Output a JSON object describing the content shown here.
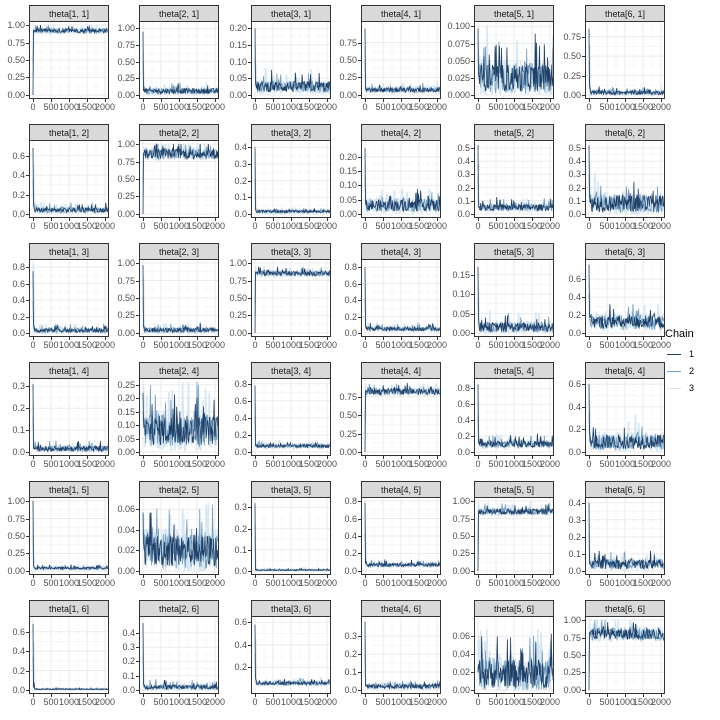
{
  "chart_data": {
    "type": "line",
    "title": "",
    "description": "MCMC trace plots faceted 6x6 by parameter theta[i, j], three chains",
    "xlabel": "",
    "ylabel": "",
    "x_range": [
      0,
      2000
    ],
    "x_ticks": [
      "0",
      "500",
      "1000",
      "1500",
      "2000"
    ],
    "grid": true,
    "legend": {
      "title": "Chain",
      "position": "right",
      "entries": [
        {
          "label": "1",
          "color": "#1f3f66"
        },
        {
          "label": "2",
          "color": "#6f9cc0"
        },
        {
          "label": "3",
          "color": "#d6e6f2"
        }
      ]
    },
    "series_names": [
      "1",
      "2",
      "3"
    ],
    "panels": [
      {
        "label": "theta[1, 1]",
        "row": 0,
        "col": 0,
        "ylim": [
          0,
          1.0
        ],
        "yticks": [
          "0.00",
          "0.25",
          "0.50",
          "0.75",
          "1.00"
        ],
        "ytick_vals": [
          0,
          0.25,
          0.5,
          0.75,
          1.0
        ],
        "start": 0.0,
        "level": 0.92,
        "spread": 0.04,
        "spike": 0.95
      },
      {
        "label": "theta[2, 1]",
        "row": 0,
        "col": 1,
        "ylim": [
          0,
          1.05
        ],
        "yticks": [
          "0.00",
          "0.25",
          "0.50",
          "0.75",
          "1.00"
        ],
        "ytick_vals": [
          0,
          0.25,
          0.5,
          0.75,
          1.0
        ],
        "start": 0.95,
        "level": 0.06,
        "spread": 0.05,
        "spike": 0.32
      },
      {
        "label": "theta[3, 1]",
        "row": 0,
        "col": 2,
        "ylim": [
          0,
          0.21
        ],
        "yticks": [
          "0.00",
          "0.05",
          "0.10",
          "0.15",
          "0.20"
        ],
        "ytick_vals": [
          0,
          0.05,
          0.1,
          0.15,
          0.2
        ],
        "start": 0.2,
        "level": 0.025,
        "spread": 0.02,
        "spike": 0.1
      },
      {
        "label": "theta[4, 1]",
        "row": 0,
        "col": 3,
        "ylim": [
          0,
          1.0
        ],
        "yticks": [
          "0.00",
          "0.25",
          "0.50",
          "0.75"
        ],
        "ytick_vals": [
          0,
          0.25,
          0.5,
          0.75
        ],
        "start": 0.95,
        "level": 0.07,
        "spread": 0.04,
        "spike": 0.18
      },
      {
        "label": "theta[5, 1]",
        "row": 0,
        "col": 4,
        "ylim": [
          0,
          0.102
        ],
        "yticks": [
          "0.000",
          "0.025",
          "0.050",
          "0.075",
          "0.100"
        ],
        "ytick_vals": [
          0,
          0.025,
          0.05,
          0.075,
          0.1
        ],
        "start": 0.097,
        "level": 0.025,
        "spread": 0.025,
        "spike": 0.06
      },
      {
        "label": "theta[6, 1]",
        "row": 0,
        "col": 5,
        "ylim": [
          0,
          0.9
        ],
        "yticks": [
          "0.00",
          "0.25",
          "0.50",
          "0.75"
        ],
        "ytick_vals": [
          0,
          0.25,
          0.5,
          0.75
        ],
        "start": 0.85,
        "level": 0.03,
        "spread": 0.03,
        "spike": 0.65
      },
      {
        "label": "theta[1, 2]",
        "row": 1,
        "col": 0,
        "ylim": [
          0,
          0.72
        ],
        "yticks": [
          "0.0",
          "0.2",
          "0.4",
          "0.6"
        ],
        "ytick_vals": [
          0,
          0.2,
          0.4,
          0.6
        ],
        "start": 0.68,
        "level": 0.04,
        "spread": 0.03,
        "spike": 0.5
      },
      {
        "label": "theta[2, 2]",
        "row": 1,
        "col": 1,
        "ylim": [
          0,
          1.0
        ],
        "yticks": [
          "0.00",
          "0.25",
          "0.50",
          "0.75",
          "1.00"
        ],
        "ytick_vals": [
          0,
          0.25,
          0.5,
          0.75,
          1.0
        ],
        "start": 0.0,
        "level": 0.86,
        "spread": 0.09,
        "spike": 0.97
      },
      {
        "label": "theta[3, 2]",
        "row": 1,
        "col": 2,
        "ylim": [
          0,
          0.42
        ],
        "yticks": [
          "0.0",
          "0.1",
          "0.2",
          "0.3",
          "0.4"
        ],
        "ytick_vals": [
          0,
          0.1,
          0.2,
          0.3,
          0.4
        ],
        "start": 0.4,
        "level": 0.015,
        "spread": 0.01,
        "spike": 0.11
      },
      {
        "label": "theta[4, 2]",
        "row": 1,
        "col": 3,
        "ylim": [
          0,
          0.245
        ],
        "yticks": [
          "0.00",
          "0.05",
          "0.10",
          "0.15",
          "0.20"
        ],
        "ytick_vals": [
          0,
          0.05,
          0.1,
          0.15,
          0.2
        ],
        "start": 0.23,
        "level": 0.03,
        "spread": 0.025,
        "spike": 0.08
      },
      {
        "label": "theta[5, 2]",
        "row": 1,
        "col": 4,
        "ylim": [
          0,
          0.53
        ],
        "yticks": [
          "0.0",
          "0.1",
          "0.2",
          "0.3",
          "0.4",
          "0.5"
        ],
        "ytick_vals": [
          0,
          0.1,
          0.2,
          0.3,
          0.4,
          0.5
        ],
        "start": 0.52,
        "level": 0.05,
        "spread": 0.03,
        "spike": 0.1
      },
      {
        "label": "theta[6, 2]",
        "row": 1,
        "col": 5,
        "ylim": [
          0,
          0.53
        ],
        "yticks": [
          "0.0",
          "0.1",
          "0.2",
          "0.3",
          "0.4",
          "0.5"
        ],
        "ytick_vals": [
          0,
          0.1,
          0.2,
          0.3,
          0.4,
          0.5
        ],
        "start": 0.52,
        "level": 0.08,
        "spread": 0.08,
        "spike": 0.4
      },
      {
        "label": "theta[1, 3]",
        "row": 2,
        "col": 0,
        "ylim": [
          0,
          0.85
        ],
        "yticks": [
          "0.0",
          "0.2",
          "0.4",
          "0.6",
          "0.8"
        ],
        "ytick_vals": [
          0,
          0.2,
          0.4,
          0.6,
          0.8
        ],
        "start": 0.75,
        "level": 0.03,
        "spread": 0.03,
        "spike": 0.84
      },
      {
        "label": "theta[2, 3]",
        "row": 2,
        "col": 1,
        "ylim": [
          0,
          1.0
        ],
        "yticks": [
          "0.00",
          "0.25",
          "0.50",
          "0.75",
          "1.00"
        ],
        "ytick_vals": [
          0,
          0.25,
          0.5,
          0.75,
          1.0
        ],
        "start": 0.97,
        "level": 0.04,
        "spread": 0.04,
        "spike": 0.78
      },
      {
        "label": "theta[3, 3]",
        "row": 2,
        "col": 2,
        "ylim": [
          0,
          1.0
        ],
        "yticks": [
          "0.00",
          "0.25",
          "0.50",
          "0.75",
          "1.00"
        ],
        "ytick_vals": [
          0,
          0.25,
          0.5,
          0.75,
          1.0
        ],
        "start": 0.0,
        "level": 0.85,
        "spread": 0.04,
        "spike": 0.95
      },
      {
        "label": "theta[4, 3]",
        "row": 2,
        "col": 3,
        "ylim": [
          0,
          0.85
        ],
        "yticks": [
          "0.0",
          "0.2",
          "0.4",
          "0.6",
          "0.8"
        ],
        "ytick_vals": [
          0,
          0.2,
          0.4,
          0.6,
          0.8
        ],
        "start": 0.8,
        "level": 0.05,
        "spread": 0.03,
        "spike": 0.35
      },
      {
        "label": "theta[5, 3]",
        "row": 2,
        "col": 4,
        "ylim": [
          0,
          0.18
        ],
        "yticks": [
          "0.00",
          "0.05",
          "0.10",
          "0.15"
        ],
        "ytick_vals": [
          0,
          0.05,
          0.1,
          0.15
        ],
        "start": 0.17,
        "level": 0.015,
        "spread": 0.015,
        "spike": 0.1
      },
      {
        "label": "theta[6, 3]",
        "row": 2,
        "col": 5,
        "ylim": [
          0,
          0.78
        ],
        "yticks": [
          "0.0",
          "0.2",
          "0.4",
          "0.6"
        ],
        "ytick_vals": [
          0,
          0.2,
          0.4,
          0.6
        ],
        "start": 0.76,
        "level": 0.12,
        "spread": 0.09,
        "spike": 0.45
      },
      {
        "label": "theta[1, 4]",
        "row": 3,
        "col": 0,
        "ylim": [
          0,
          0.32
        ],
        "yticks": [
          "0.0",
          "0.1",
          "0.2",
          "0.3"
        ],
        "ytick_vals": [
          0,
          0.1,
          0.2,
          0.3
        ],
        "start": 0.31,
        "level": 0.015,
        "spread": 0.015,
        "spike": 0.05
      },
      {
        "label": "theta[2, 4]",
        "row": 3,
        "col": 1,
        "ylim": [
          0,
          0.26
        ],
        "yticks": [
          "0.00",
          "0.05",
          "0.10",
          "0.15",
          "0.20",
          "0.25"
        ],
        "ytick_vals": [
          0,
          0.05,
          0.1,
          0.15,
          0.2,
          0.25
        ],
        "start": 0.22,
        "level": 0.08,
        "spread": 0.07,
        "spike": 0.25
      },
      {
        "label": "theta[3, 4]",
        "row": 3,
        "col": 2,
        "ylim": [
          0,
          0.82
        ],
        "yticks": [
          "0.0",
          "0.2",
          "0.4",
          "0.6",
          "0.8"
        ],
        "ytick_vals": [
          0,
          0.2,
          0.4,
          0.6,
          0.8
        ],
        "start": 0.78,
        "level": 0.07,
        "spread": 0.025,
        "spike": 0.1
      },
      {
        "label": "theta[4, 4]",
        "row": 3,
        "col": 3,
        "ylim": [
          0,
          0.95
        ],
        "yticks": [
          "0.00",
          "0.25",
          "0.50",
          "0.75"
        ],
        "ytick_vals": [
          0,
          0.25,
          0.5,
          0.75
        ],
        "start": 0.0,
        "level": 0.82,
        "spread": 0.05,
        "spike": 0.92
      },
      {
        "label": "theta[5, 4]",
        "row": 3,
        "col": 4,
        "ylim": [
          0,
          0.88
        ],
        "yticks": [
          "0.0",
          "0.2",
          "0.4",
          "0.6",
          "0.8"
        ],
        "ytick_vals": [
          0,
          0.2,
          0.4,
          0.6,
          0.8
        ],
        "start": 0.85,
        "level": 0.1,
        "spread": 0.05,
        "spike": 0.2
      },
      {
        "label": "theta[6, 4]",
        "row": 3,
        "col": 5,
        "ylim": [
          0,
          0.62
        ],
        "yticks": [
          "0.0",
          "0.2",
          "0.4",
          "0.6"
        ],
        "ytick_vals": [
          0,
          0.2,
          0.4,
          0.6
        ],
        "start": 0.6,
        "level": 0.09,
        "spread": 0.08,
        "spike": 0.45
      },
      {
        "label": "theta[1, 5]",
        "row": 4,
        "col": 0,
        "ylim": [
          0,
          1.0
        ],
        "yticks": [
          "0.00",
          "0.25",
          "0.50",
          "0.75",
          "1.00"
        ],
        "ytick_vals": [
          0,
          0.25,
          0.5,
          0.75,
          1.0
        ],
        "start": 1.0,
        "level": 0.04,
        "spread": 0.02,
        "spike": 0.26
      },
      {
        "label": "theta[2, 5]",
        "row": 4,
        "col": 1,
        "ylim": [
          0,
          0.068
        ],
        "yticks": [
          "0.00",
          "0.02",
          "0.04",
          "0.06"
        ],
        "ytick_vals": [
          0,
          0.02,
          0.04,
          0.06
        ],
        "start": 0.057,
        "level": 0.02,
        "spread": 0.02,
        "spike": 0.055
      },
      {
        "label": "theta[3, 5]",
        "row": 4,
        "col": 2,
        "ylim": [
          0,
          0.33
        ],
        "yticks": [
          "0.0",
          "0.1",
          "0.2",
          "0.3"
        ],
        "ytick_vals": [
          0,
          0.1,
          0.2,
          0.3
        ],
        "start": 0.32,
        "level": 0.004,
        "spread": 0.003,
        "spike": 0.05
      },
      {
        "label": "theta[4, 5]",
        "row": 4,
        "col": 3,
        "ylim": [
          0,
          0.8
        ],
        "yticks": [
          "0.0",
          "0.2",
          "0.4",
          "0.6",
          "0.8"
        ],
        "ytick_vals": [
          0,
          0.2,
          0.4,
          0.6,
          0.8
        ],
        "start": 0.78,
        "level": 0.07,
        "spread": 0.025,
        "spike": 0.4
      },
      {
        "label": "theta[5, 5]",
        "row": 4,
        "col": 4,
        "ylim": [
          0,
          1.0
        ],
        "yticks": [
          "0.00",
          "0.25",
          "0.50",
          "0.75",
          "1.00"
        ],
        "ytick_vals": [
          0,
          0.25,
          0.5,
          0.75,
          1.0
        ],
        "start": 0.0,
        "level": 0.85,
        "spread": 0.05,
        "spike": 0.97
      },
      {
        "label": "theta[6, 5]",
        "row": 4,
        "col": 5,
        "ylim": [
          0,
          0.41
        ],
        "yticks": [
          "0.0",
          "0.1",
          "0.2",
          "0.3",
          "0.4"
        ],
        "ytick_vals": [
          0,
          0.1,
          0.2,
          0.3,
          0.4
        ],
        "start": 0.4,
        "level": 0.04,
        "spread": 0.035,
        "spike": 0.1
      },
      {
        "label": "theta[1, 6]",
        "row": 5,
        "col": 0,
        "ylim": [
          0,
          0.72
        ],
        "yticks": [
          "0.0",
          "0.2",
          "0.4",
          "0.6"
        ],
        "ytick_vals": [
          0,
          0.2,
          0.4,
          0.6
        ],
        "start": 0.68,
        "level": 0.008,
        "spread": 0.006,
        "spike": 0.48
      },
      {
        "label": "theta[2, 6]",
        "row": 5,
        "col": 1,
        "ylim": [
          0,
          0.49
        ],
        "yticks": [
          "0.0",
          "0.1",
          "0.2",
          "0.3",
          "0.4"
        ],
        "ytick_vals": [
          0,
          0.1,
          0.2,
          0.3,
          0.4
        ],
        "start": 0.47,
        "level": 0.02,
        "spread": 0.02,
        "spike": 0.13
      },
      {
        "label": "theta[3, 6]",
        "row": 5,
        "col": 2,
        "ylim": [
          0,
          0.62
        ],
        "yticks": [
          "0.2",
          "0.4",
          "0.6"
        ],
        "ytick_vals": [
          0.2,
          0.4,
          0.6
        ],
        "start": 0.58,
        "level": 0.06,
        "spread": 0.02,
        "spike": 0.45
      },
      {
        "label": "theta[4, 6]",
        "row": 5,
        "col": 3,
        "ylim": [
          0,
          0.39
        ],
        "yticks": [
          "0.0",
          "0.1",
          "0.2",
          "0.3"
        ],
        "ytick_vals": [
          0,
          0.1,
          0.2,
          0.3
        ],
        "start": 0.38,
        "level": 0.02,
        "spread": 0.015,
        "spike": 0.05
      },
      {
        "label": "theta[5, 6]",
        "row": 5,
        "col": 4,
        "ylim": [
          0,
          0.078
        ],
        "yticks": [
          "0.00",
          "0.02",
          "0.04",
          "0.06"
        ],
        "ytick_vals": [
          0,
          0.02,
          0.04,
          0.06
        ],
        "start": 0.02,
        "level": 0.018,
        "spread": 0.02,
        "spike": 0.06
      },
      {
        "label": "theta[6, 6]",
        "row": 5,
        "col": 5,
        "ylim": [
          0,
          1.0
        ],
        "yticks": [
          "0.00",
          "0.25",
          "0.50",
          "0.75",
          "1.00"
        ],
        "ytick_vals": [
          0,
          0.25,
          0.5,
          0.75,
          1.0
        ],
        "start": 0.0,
        "level": 0.8,
        "spread": 0.1,
        "spike": 0.95
      }
    ]
  }
}
